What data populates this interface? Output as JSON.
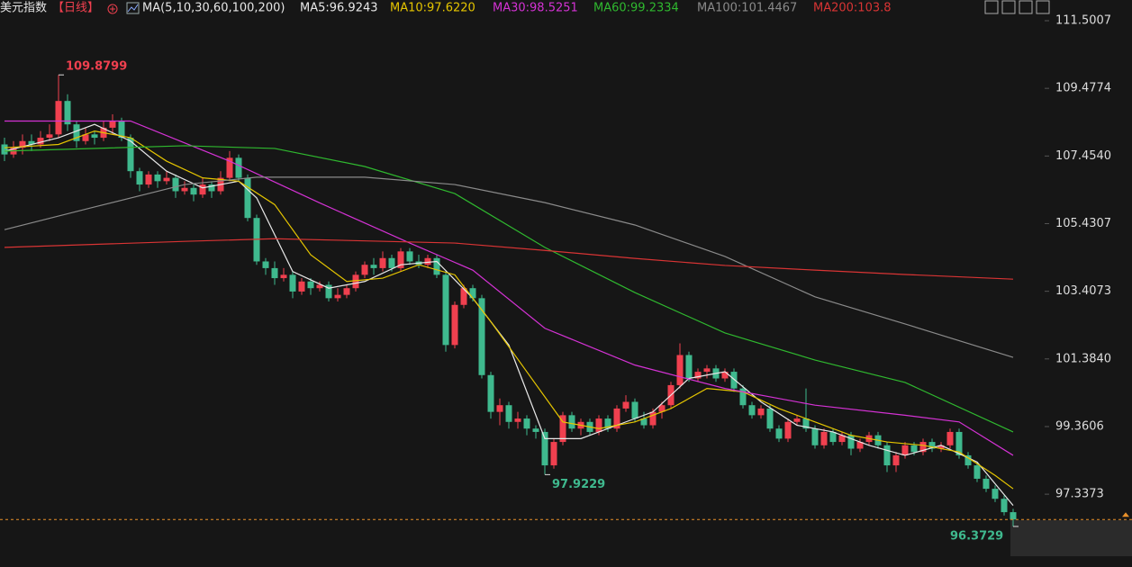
{
  "chart_data": {
    "type": "candlestick",
    "title": "美元指数",
    "period": "【日线】",
    "indicator": "MA(5,10,30,60,100,200)",
    "up_color": "#f0404f",
    "down_color": "#3fb98e",
    "ylim": [
      95.16,
      112.12
    ],
    "yticks": [
      111.5007,
      109.4774,
      {
        "value": 107.454,
        "label": "107.4540"
      },
      105.4307,
      103.4073,
      {
        "value": 101.384,
        "label": "101.3840"
      },
      99.3606,
      97.3373
    ],
    "ohlc": [
      [
        107.8,
        108.0,
        107.3,
        107.5
      ],
      [
        107.5,
        107.9,
        107.4,
        107.7
      ],
      [
        107.7,
        108.1,
        107.5,
        107.9
      ],
      [
        107.9,
        108.1,
        107.6,
        107.8
      ],
      [
        107.8,
        108.2,
        107.7,
        108.0
      ],
      [
        108.0,
        108.4,
        107.9,
        108.1
      ],
      [
        108.1,
        109.8799,
        108.0,
        109.1
      ],
      [
        109.1,
        109.3,
        108.2,
        108.4
      ],
      [
        108.4,
        108.5,
        107.7,
        107.9
      ],
      [
        107.9,
        108.3,
        107.8,
        108.1
      ],
      [
        108.1,
        108.2,
        107.8,
        108.0
      ],
      [
        108.0,
        108.5,
        107.9,
        108.3
      ],
      [
        108.3,
        108.7,
        108.1,
        108.5
      ],
      [
        108.5,
        108.6,
        107.9,
        108.0
      ],
      [
        108.0,
        108.1,
        106.8,
        107.0
      ],
      [
        107.0,
        107.1,
        106.4,
        106.6
      ],
      [
        106.6,
        107.0,
        106.5,
        106.9
      ],
      [
        106.9,
        107.0,
        106.5,
        106.7
      ],
      [
        106.7,
        107.0,
        106.6,
        106.8
      ],
      [
        106.8,
        106.9,
        106.2,
        106.4
      ],
      [
        106.4,
        106.7,
        106.3,
        106.5
      ],
      [
        106.5,
        106.6,
        106.1,
        106.3
      ],
      [
        106.3,
        106.8,
        106.2,
        106.6
      ],
      [
        106.6,
        106.7,
        106.2,
        106.4
      ],
      [
        106.4,
        107.0,
        106.3,
        106.8
      ],
      [
        106.8,
        107.6,
        106.7,
        107.4
      ],
      [
        107.4,
        107.5,
        106.7,
        106.8
      ],
      [
        106.8,
        106.9,
        105.5,
        105.6
      ],
      [
        105.6,
        105.7,
        104.2,
        104.3
      ],
      [
        104.3,
        104.4,
        103.9,
        104.1
      ],
      [
        104.1,
        104.3,
        103.6,
        103.8
      ],
      [
        103.8,
        104.1,
        103.7,
        103.9
      ],
      [
        103.9,
        104.0,
        103.2,
        103.4
      ],
      [
        103.4,
        103.8,
        103.3,
        103.7
      ],
      [
        103.7,
        103.8,
        103.3,
        103.5
      ],
      [
        103.5,
        103.7,
        103.4,
        103.6
      ],
      [
        103.6,
        103.7,
        103.1,
        103.2
      ],
      [
        103.2,
        103.5,
        103.1,
        103.3
      ],
      [
        103.3,
        103.6,
        103.2,
        103.5
      ],
      [
        103.5,
        104.0,
        103.4,
        103.9
      ],
      [
        103.9,
        104.3,
        103.8,
        104.2
      ],
      [
        104.2,
        104.4,
        103.9,
        104.1
      ],
      [
        104.1,
        104.6,
        104.0,
        104.4
      ],
      [
        104.4,
        104.5,
        104.0,
        104.1
      ],
      [
        104.1,
        104.7,
        104.0,
        104.6
      ],
      [
        104.6,
        104.7,
        104.2,
        104.3
      ],
      [
        104.3,
        104.5,
        104.1,
        104.2
      ],
      [
        104.2,
        104.5,
        104.1,
        104.4
      ],
      [
        104.4,
        104.5,
        103.8,
        103.9
      ],
      [
        103.9,
        104.0,
        101.6,
        101.8
      ],
      [
        101.8,
        103.1,
        101.7,
        103.0
      ],
      [
        103.0,
        103.6,
        102.9,
        103.5
      ],
      [
        103.5,
        103.6,
        103.1,
        103.2
      ],
      [
        103.2,
        103.3,
        100.8,
        100.9
      ],
      [
        100.9,
        101.0,
        99.6,
        99.8
      ],
      [
        99.8,
        100.2,
        99.4,
        100.0
      ],
      [
        100.0,
        100.1,
        99.3,
        99.5
      ],
      [
        99.5,
        99.8,
        99.3,
        99.6
      ],
      [
        99.6,
        99.7,
        99.1,
        99.3
      ],
      [
        99.3,
        99.4,
        99.0,
        99.2
      ],
      [
        99.2,
        99.3,
        97.9229,
        98.2
      ],
      [
        98.2,
        99.0,
        98.1,
        98.9
      ],
      [
        98.9,
        99.8,
        98.8,
        99.7
      ],
      [
        99.7,
        99.8,
        99.2,
        99.3
      ],
      [
        99.3,
        99.6,
        99.1,
        99.5
      ],
      [
        99.5,
        99.6,
        99.1,
        99.2
      ],
      [
        99.2,
        99.7,
        99.1,
        99.6
      ],
      [
        99.6,
        99.7,
        99.2,
        99.3
      ],
      [
        99.3,
        100.0,
        99.2,
        99.9
      ],
      [
        99.9,
        100.3,
        99.8,
        100.1
      ],
      [
        100.1,
        100.2,
        99.5,
        99.6
      ],
      [
        99.6,
        99.8,
        99.3,
        99.4
      ],
      [
        99.4,
        99.9,
        99.3,
        99.8
      ],
      [
        99.8,
        100.1,
        99.6,
        100.0
      ],
      [
        100.0,
        100.7,
        99.9,
        100.6
      ],
      [
        100.6,
        101.85,
        100.5,
        101.5
      ],
      [
        101.5,
        101.6,
        100.7,
        100.8
      ],
      [
        100.8,
        101.1,
        100.7,
        101.0
      ],
      [
        101.0,
        101.2,
        100.8,
        101.1
      ],
      [
        101.1,
        101.2,
        100.7,
        100.8
      ],
      [
        100.8,
        101.1,
        100.7,
        101.0
      ],
      [
        101.0,
        101.1,
        100.4,
        100.5
      ],
      [
        100.5,
        100.6,
        99.9,
        100.0
      ],
      [
        100.0,
        100.1,
        99.6,
        99.7
      ],
      [
        99.7,
        100.0,
        99.6,
        99.9
      ],
      [
        99.9,
        100.0,
        99.2,
        99.3
      ],
      [
        99.3,
        99.4,
        98.9,
        99.0
      ],
      [
        99.0,
        99.6,
        98.9,
        99.5
      ],
      [
        99.5,
        99.7,
        99.4,
        99.6
      ],
      [
        99.6,
        100.5,
        99.2,
        99.3
      ],
      [
        99.3,
        99.4,
        98.7,
        98.8
      ],
      [
        98.8,
        99.3,
        98.7,
        99.2
      ],
      [
        99.2,
        99.3,
        98.8,
        98.9
      ],
      [
        98.9,
        99.2,
        98.8,
        99.1
      ],
      [
        99.1,
        99.2,
        98.5,
        98.7
      ],
      [
        98.7,
        99.0,
        98.6,
        98.9
      ],
      [
        98.9,
        99.2,
        98.8,
        99.1
      ],
      [
        99.1,
        99.2,
        98.7,
        98.8
      ],
      [
        98.8,
        98.9,
        98.0,
        98.2
      ],
      [
        98.2,
        98.6,
        98.0,
        98.5
      ],
      [
        98.5,
        98.9,
        98.4,
        98.8
      ],
      [
        98.8,
        98.9,
        98.5,
        98.6
      ],
      [
        98.6,
        99.0,
        98.5,
        98.9
      ],
      [
        98.9,
        99.0,
        98.6,
        98.7
      ],
      [
        98.7,
        98.9,
        98.6,
        98.8
      ],
      [
        98.8,
        99.3,
        98.7,
        99.2
      ],
      [
        99.2,
        99.3,
        98.4,
        98.5
      ],
      [
        98.5,
        98.6,
        98.1,
        98.2
      ],
      [
        98.2,
        98.3,
        97.7,
        97.8
      ],
      [
        97.8,
        97.9,
        97.4,
        97.5
      ],
      [
        97.5,
        97.6,
        97.1,
        97.2
      ],
      [
        97.2,
        97.3,
        96.7,
        96.8
      ],
      [
        96.8,
        96.9,
        96.3729,
        96.58
      ]
    ],
    "series": [
      {
        "name": "MA5:96.9243",
        "color": "#e8e8e8",
        "x": [
          0,
          6,
          10,
          14,
          18,
          22,
          26,
          28,
          32,
          36,
          40,
          44,
          48,
          52,
          56,
          60,
          64,
          68,
          72,
          76,
          80,
          84,
          88,
          92,
          96,
          100,
          104,
          108,
          112
        ],
        "values": [
          107.6,
          108.0,
          108.4,
          107.9,
          107.0,
          106.5,
          106.7,
          106.2,
          104.0,
          103.5,
          103.7,
          104.2,
          104.3,
          103.2,
          101.8,
          99.0,
          99.0,
          99.4,
          99.8,
          100.8,
          101.0,
          100.1,
          99.4,
          99.2,
          98.8,
          98.5,
          98.8,
          98.3,
          97.0
        ]
      },
      {
        "name": "MA10:97.6220",
        "color": "#e5c500",
        "x": [
          0,
          6,
          10,
          14,
          18,
          22,
          26,
          30,
          34,
          38,
          42,
          46,
          50,
          54,
          58,
          62,
          66,
          70,
          74,
          78,
          82,
          86,
          90,
          94,
          98,
          102,
          106,
          110,
          112
        ],
        "values": [
          107.7,
          107.8,
          108.2,
          108.0,
          107.3,
          106.8,
          106.7,
          106.0,
          104.5,
          103.7,
          103.8,
          104.2,
          103.9,
          102.5,
          101.0,
          99.5,
          99.3,
          99.5,
          99.9,
          100.5,
          100.4,
          99.9,
          99.5,
          99.1,
          98.9,
          98.8,
          98.6,
          97.9,
          97.5
        ]
      },
      {
        "name": "MA30:98.5251",
        "color": "#d432d4",
        "x": [
          0,
          14,
          25,
          35,
          45,
          52,
          60,
          70,
          80,
          90,
          100,
          106,
          112
        ],
        "values": [
          108.5,
          108.5,
          107.3,
          106.05,
          104.85,
          104.04,
          102.3,
          101.2,
          100.5,
          100.0,
          99.7,
          99.5,
          98.5
        ]
      },
      {
        "name": "MA60:99.2334",
        "color": "#2fb82f",
        "x": [
          0,
          20,
          30,
          40,
          50,
          60,
          70,
          80,
          90,
          100,
          112
        ],
        "values": [
          107.6,
          107.76,
          107.68,
          107.14,
          106.33,
          104.72,
          103.37,
          102.16,
          101.35,
          100.68,
          99.2
        ]
      },
      {
        "name": "MA100:101.4467",
        "color": "#8a8a8a",
        "x": [
          0,
          10,
          20,
          28,
          40,
          50,
          60,
          70,
          80,
          90,
          100,
          112
        ],
        "values": [
          105.25,
          105.93,
          106.6,
          106.82,
          106.82,
          106.6,
          106.06,
          105.39,
          104.45,
          103.24,
          102.43,
          101.43
        ]
      },
      {
        "name": "MA200:103.8",
        "color": "#d83434",
        "x": [
          0,
          20,
          30,
          50,
          60,
          70,
          80,
          90,
          100,
          112
        ],
        "values": [
          104.72,
          104.9,
          104.98,
          104.85,
          104.63,
          104.39,
          104.18,
          104.04,
          103.91,
          103.77
        ]
      }
    ]
  }
}
